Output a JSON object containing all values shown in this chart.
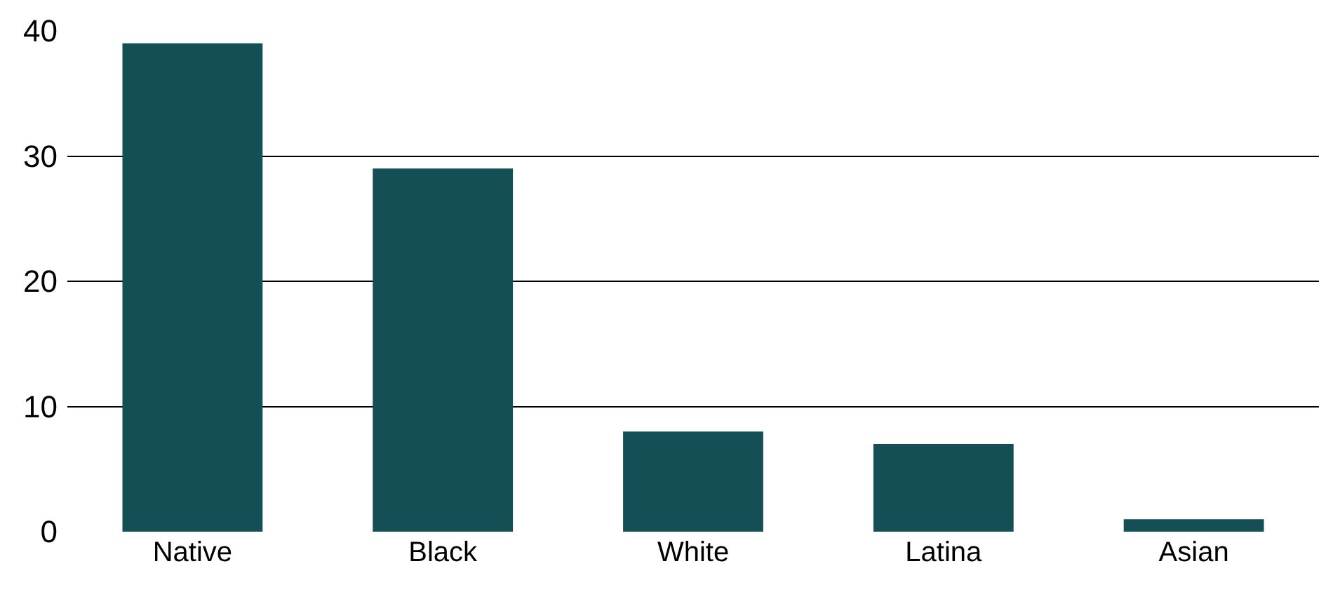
{
  "chart_data": {
    "type": "bar",
    "categories": [
      "Native",
      "Black",
      "White",
      "Latina",
      "Asian"
    ],
    "values": [
      39,
      29,
      8,
      7,
      1
    ],
    "color": "#134f55",
    "ylim": [
      0,
      40
    ],
    "yticks": [
      0,
      10,
      20,
      30,
      40
    ],
    "grid": "y"
  }
}
